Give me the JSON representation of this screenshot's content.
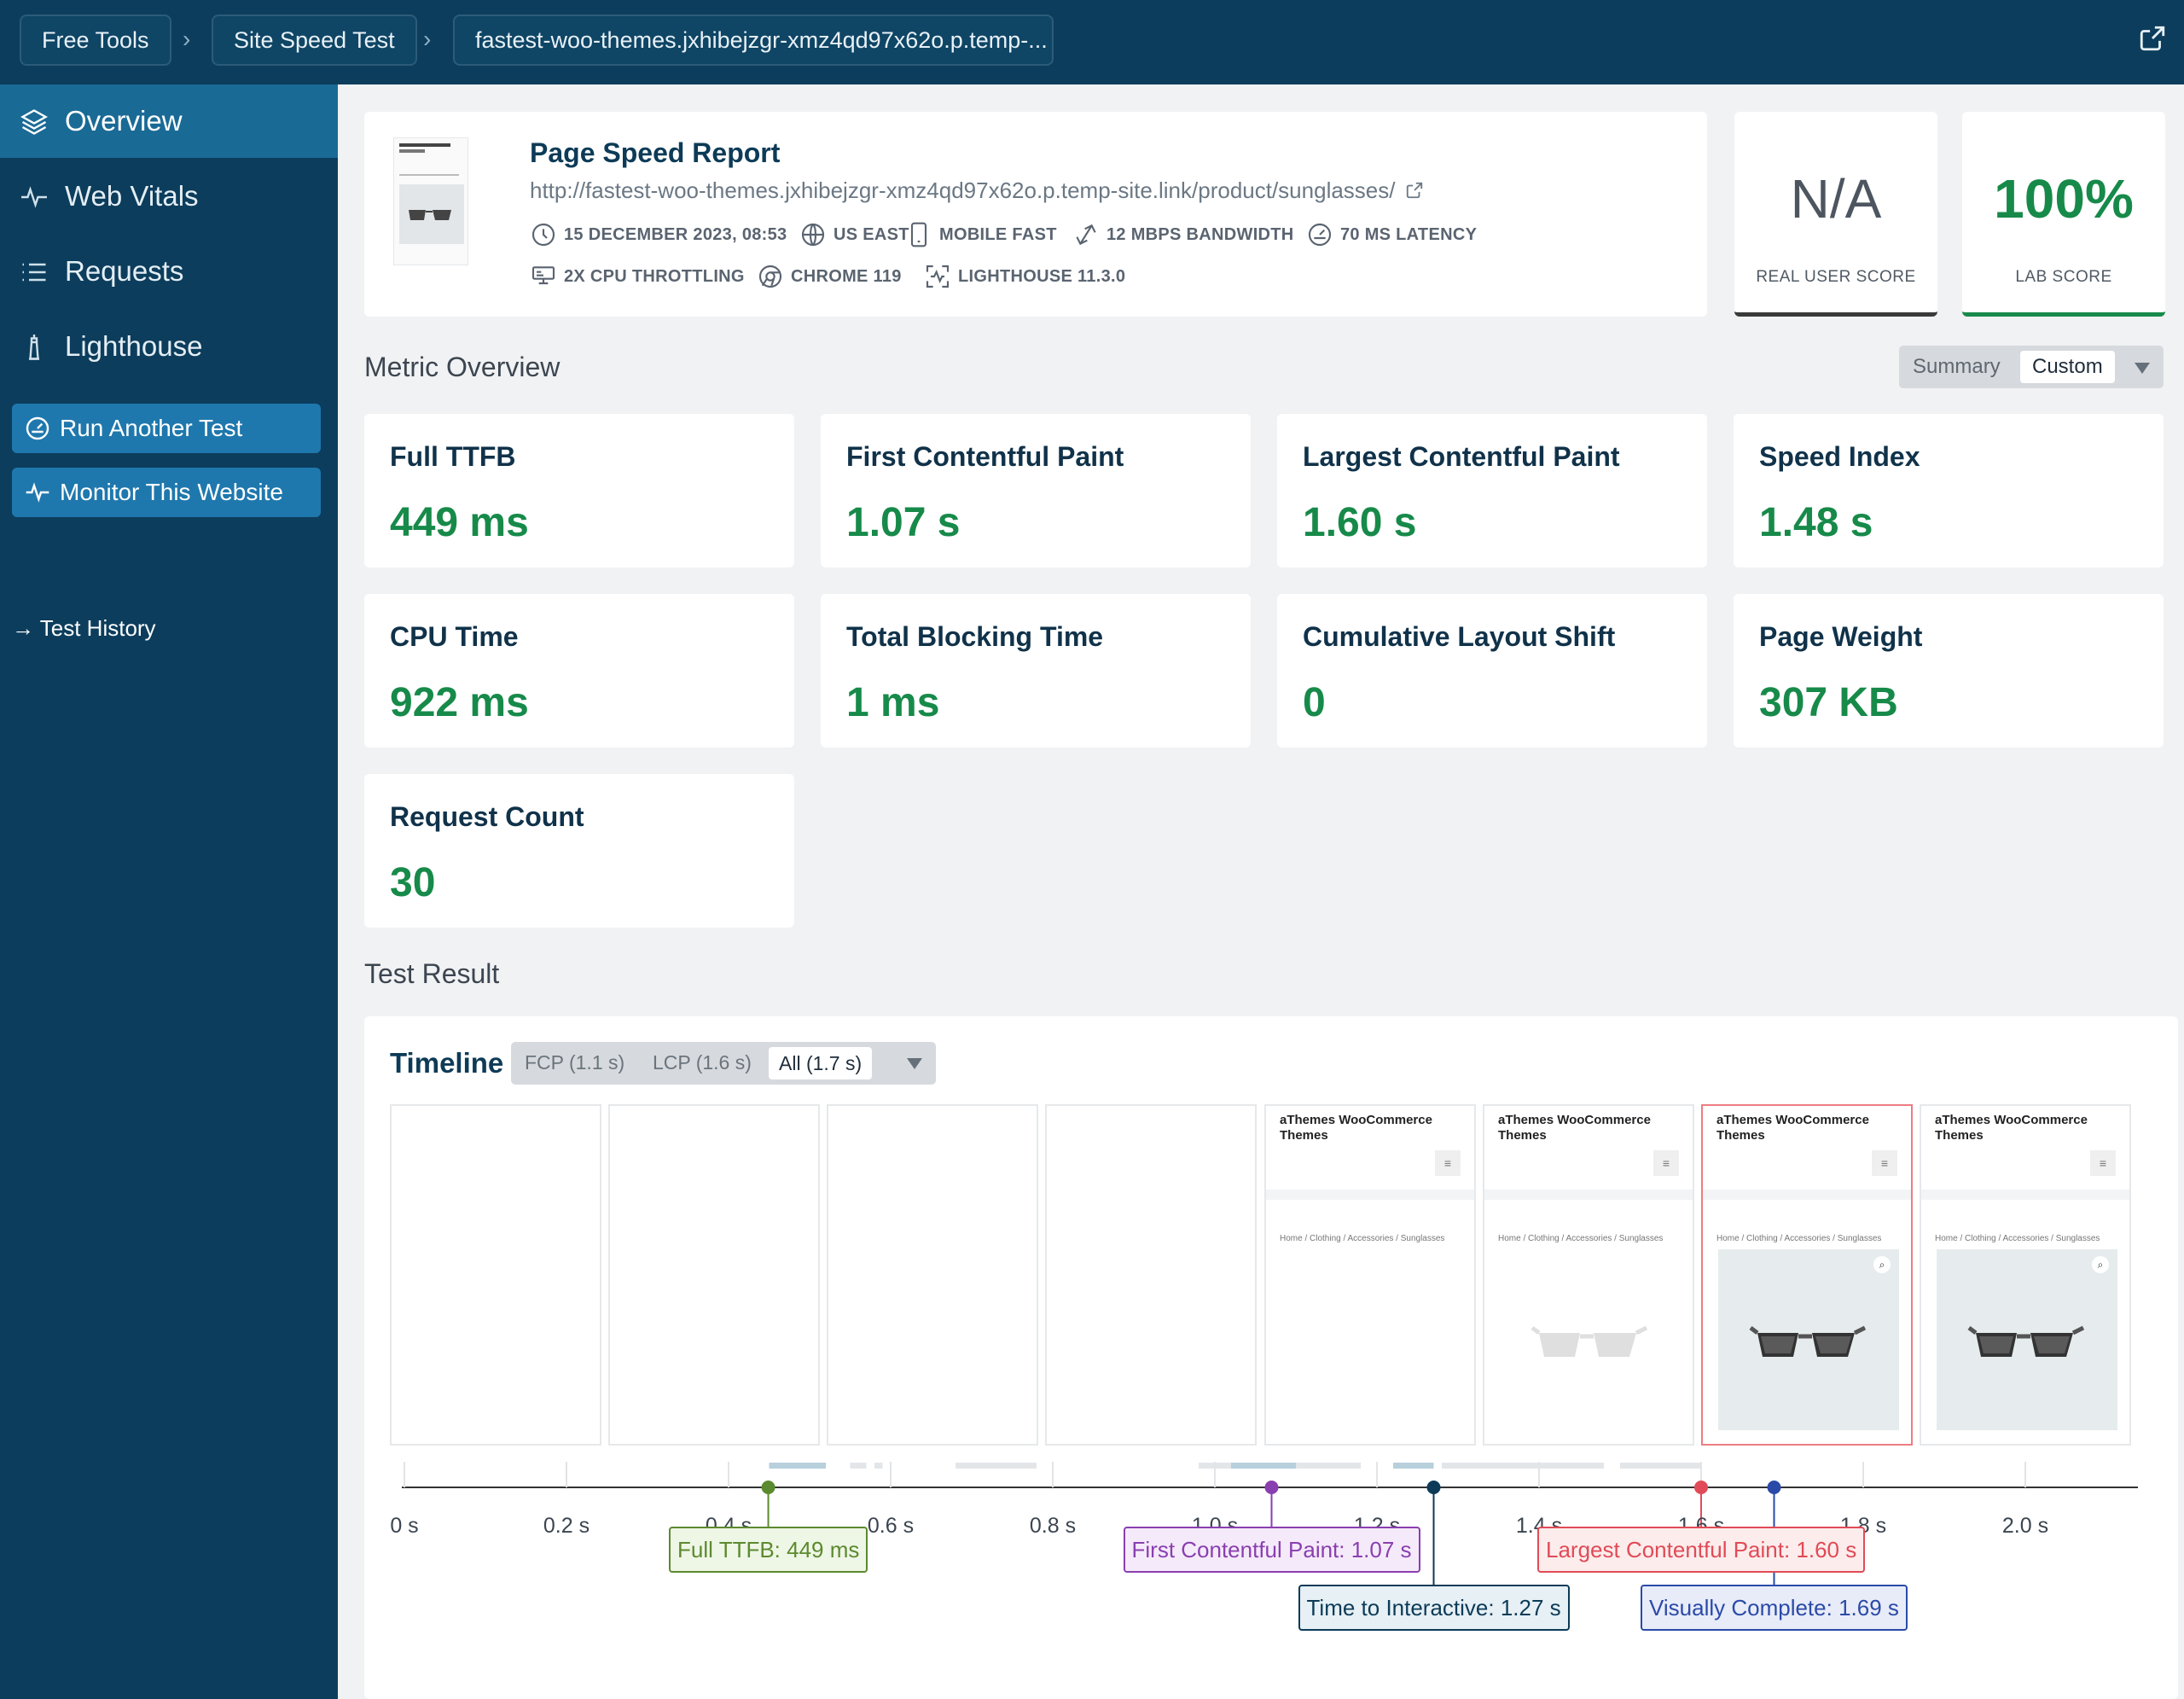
{
  "breadcrumbs": [
    "Free Tools",
    "Site Speed Test",
    "fastest-woo-themes.jxhibejzgr-xmz4qd97x62o.p.temp-..."
  ],
  "sidebar": {
    "items": [
      {
        "label": "Overview",
        "icon": "layers-icon"
      },
      {
        "label": "Web Vitals",
        "icon": "pulse-icon"
      },
      {
        "label": "Requests",
        "icon": "list-icon"
      },
      {
        "label": "Lighthouse",
        "icon": "lighthouse-icon"
      }
    ],
    "run_label": "Run Another Test",
    "monitor_label": "Monitor This Website",
    "history_label": "→ Test History"
  },
  "report": {
    "title": "Page Speed Report",
    "url": "http://fastest-woo-themes.jxhibejzgr-xmz4qd97x62o.p.temp-site.link/product/sunglasses/",
    "date": "15 DECEMBER 2023, 08:53",
    "location": "US EAST",
    "device": "MOBILE FAST",
    "bandwidth": "12 MBPS BANDWIDTH",
    "latency": "70 MS LATENCY",
    "cpu": "2X CPU THROTTLING",
    "browser": "CHROME 119",
    "lighthouse": "LIGHTHOUSE 11.3.0"
  },
  "scores": {
    "real_user_value": "N/A",
    "real_user_label": "REAL USER SCORE",
    "lab_value": "100%",
    "lab_label": "LAB SCORE"
  },
  "metric_overview": {
    "heading": "Metric Overview",
    "toggle": {
      "summary": "Summary",
      "custom": "Custom"
    },
    "metrics": [
      {
        "label": "Full TTFB",
        "value": "449 ms"
      },
      {
        "label": "First Contentful Paint",
        "value": "1.07 s"
      },
      {
        "label": "Largest Contentful Paint",
        "value": "1.60 s"
      },
      {
        "label": "Speed Index",
        "value": "1.48 s"
      },
      {
        "label": "CPU Time",
        "value": "922 ms"
      },
      {
        "label": "Total Blocking Time",
        "value": "1 ms"
      },
      {
        "label": "Cumulative Layout Shift",
        "value": "0"
      },
      {
        "label": "Page Weight",
        "value": "307 KB"
      },
      {
        "label": "Request Count",
        "value": "30"
      }
    ]
  },
  "test_result": {
    "heading": "Test Result",
    "timeline": {
      "title": "Timeline",
      "tabs": {
        "fcp": "FCP (1.1 s)",
        "lcp": "LCP (1.6 s)",
        "all": "All (1.7 s)"
      },
      "frame_title": "aThemes WooCommerce Themes",
      "frame_breadcrumb": "Home / Clothing / Accessories / Sunglasses",
      "ticks": [
        "0 s",
        "0.2 s",
        "0.4 s",
        "0.6 s",
        "0.8 s",
        "1.0 s",
        "1.2 s",
        "1.4 s",
        "1.6 s",
        "1.8 s",
        "2.0 s"
      ],
      "markers": [
        {
          "label": "Full TTFB: 449 ms",
          "time": 0.449,
          "color": "#5c8a2e"
        },
        {
          "label": "First Contentful Paint: 1.07 s",
          "time": 1.07,
          "color": "#8a3fb0"
        },
        {
          "label": "Time to Interactive: 1.27 s",
          "time": 1.27,
          "color": "#0d3b57"
        },
        {
          "label": "Largest Contentful Paint: 1.60 s",
          "time": 1.6,
          "color": "#e04b57"
        },
        {
          "label": "Visually Complete: 1.69 s",
          "time": 1.69,
          "color": "#2b4aa8"
        }
      ]
    }
  },
  "colors": {
    "sidebar": "#0c3d5c",
    "active": "#1a6a96",
    "button": "#1f78ad",
    "good": "#178a4a"
  }
}
